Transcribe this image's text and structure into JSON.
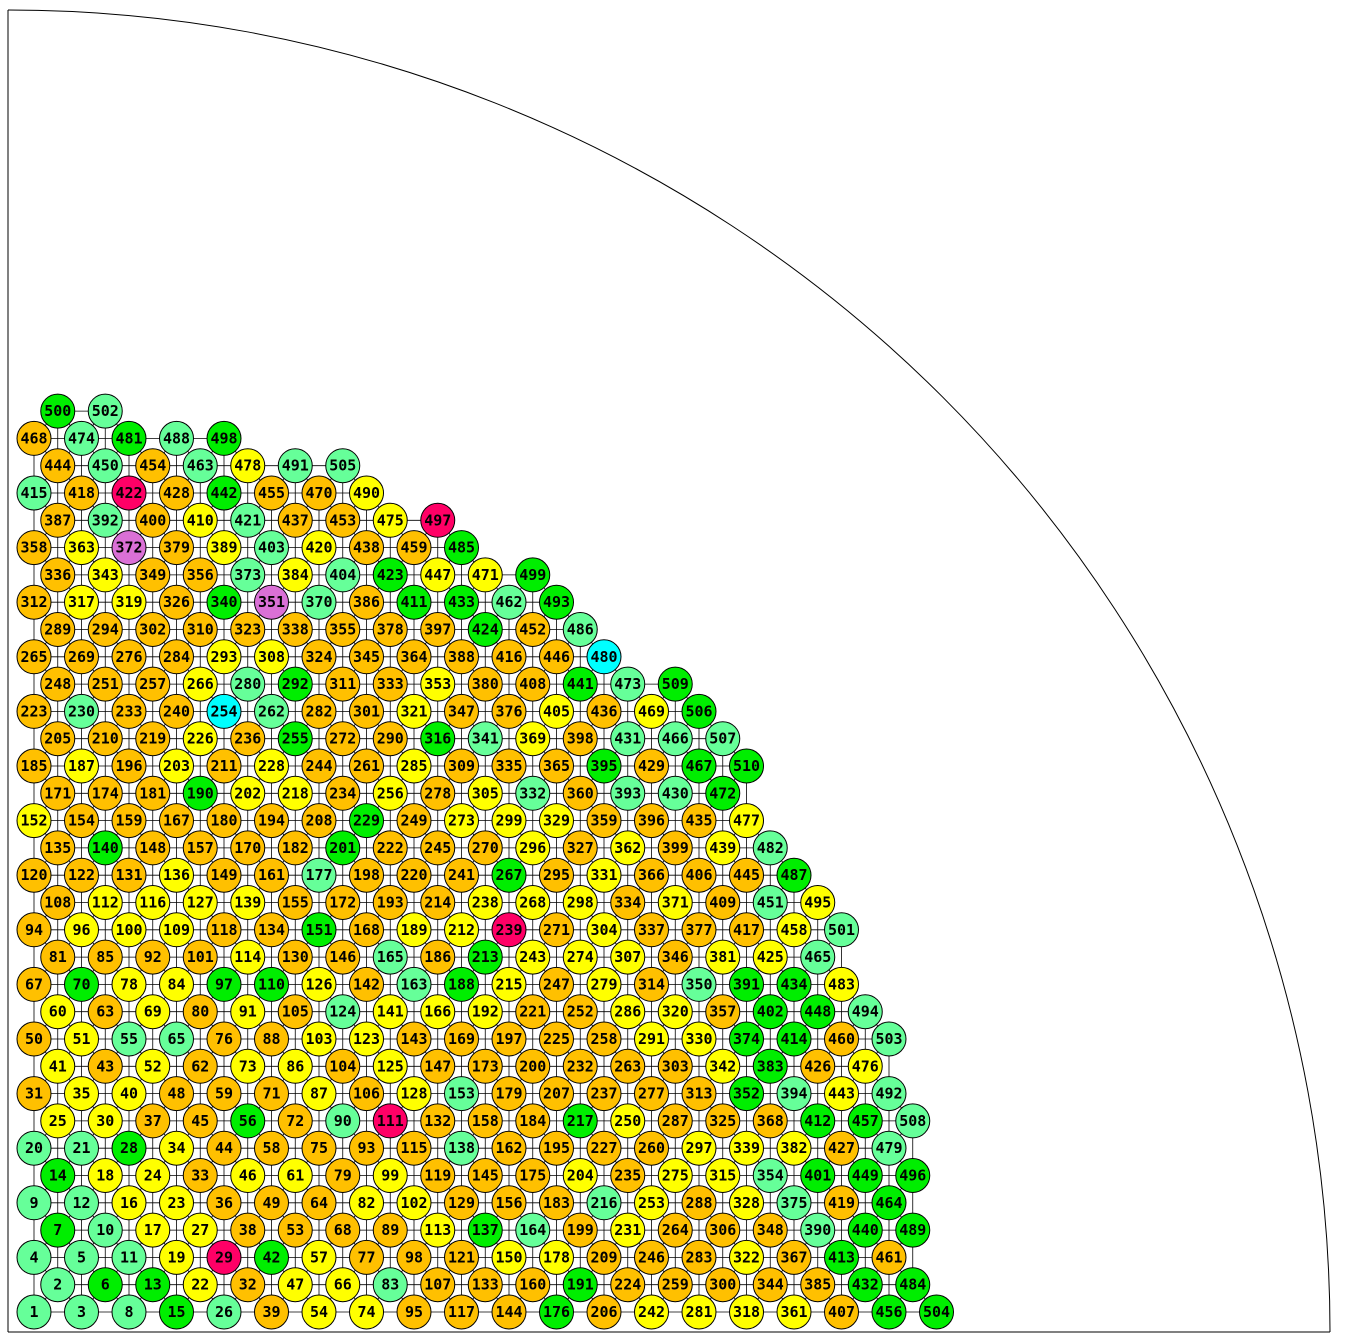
{
  "colors": {
    "orange": "#ffc000",
    "yellow": "#ffff00",
    "mint": "#66ff99",
    "green": "#00ee00",
    "cyan": "#00ffff",
    "magenta": "#ff0066",
    "orchid": "#da70d6"
  },
  "diagram": {
    "type": "circle-packing-quadrant",
    "lattice_rows": 26,
    "color_legend_by_id": {
      "cyan": [
        254,
        480
      ],
      "magenta": [
        29,
        111,
        239,
        422,
        497
      ],
      "orchid": [
        351,
        372
      ],
      "mint": [
        1,
        2,
        3,
        4,
        5,
        8,
        9,
        10,
        11,
        12,
        20,
        21,
        26,
        55,
        65,
        83,
        90,
        124,
        138,
        153,
        163,
        164,
        165,
        177,
        216,
        230,
        262,
        280,
        332,
        341,
        350,
        354,
        370,
        373,
        375,
        390,
        392,
        393,
        394,
        403,
        404,
        415,
        421,
        430,
        431,
        450,
        451,
        462,
        463,
        465,
        466,
        473,
        474,
        479,
        482,
        486,
        488,
        491,
        492,
        494,
        501,
        502,
        503,
        505,
        507,
        508
      ],
      "green": [
        6,
        7,
        13,
        14,
        15,
        28,
        42,
        56,
        70,
        97,
        110,
        137,
        140,
        151,
        176,
        188,
        190,
        191,
        201,
        213,
        217,
        229,
        255,
        267,
        292,
        316,
        340,
        352,
        374,
        383,
        391,
        395,
        401,
        402,
        411,
        412,
        413,
        414,
        423,
        424,
        432,
        433,
        434,
        440,
        441,
        442,
        448,
        449,
        456,
        457,
        464,
        467,
        472,
        481,
        484,
        485,
        487,
        489,
        493,
        496,
        498,
        499,
        500,
        504,
        506,
        509,
        510
      ],
      "yellow": [
        16,
        17,
        18,
        19,
        22,
        23,
        24,
        25,
        27,
        30,
        34,
        35,
        40,
        41,
        46,
        47,
        51,
        52,
        54,
        57,
        60,
        61,
        66,
        69,
        73,
        74,
        78,
        82,
        84,
        86,
        87,
        91,
        96,
        99,
        100,
        102,
        103,
        109,
        112,
        113,
        114,
        116,
        123,
        125,
        126,
        127,
        128,
        136,
        139,
        141,
        150,
        152,
        166,
        178,
        187,
        189,
        192,
        202,
        203,
        204,
        212,
        215,
        218,
        226,
        228,
        231,
        238,
        242,
        243,
        250,
        253,
        256,
        266,
        268,
        273,
        274,
        275,
        279,
        281,
        285,
        286,
        291,
        293,
        296,
        297,
        298,
        299,
        304,
        305,
        307,
        308,
        315,
        317,
        318,
        319,
        320,
        321,
        322,
        328,
        329,
        330,
        331,
        339,
        342,
        343,
        353,
        361,
        362,
        363,
        369,
        371,
        381,
        382,
        384,
        389,
        405,
        410,
        420,
        425,
        439,
        443,
        447,
        458,
        469,
        471,
        475,
        476,
        477,
        478,
        483,
        490,
        495
      ]
    },
    "default_color": "orange",
    "nodes_highest_id": 510
  }
}
